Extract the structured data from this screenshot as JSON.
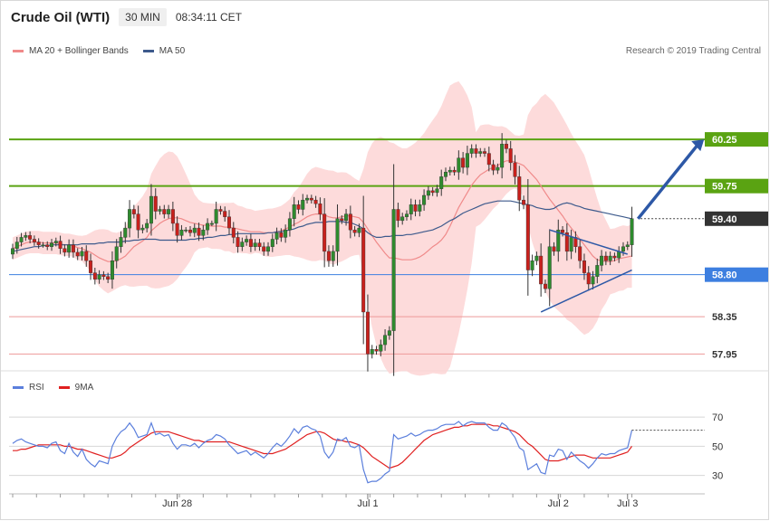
{
  "header": {
    "title": "Crude Oil (WTI)",
    "timeframe": "30 MIN",
    "time": "08:34:11 CET"
  },
  "legend": {
    "ma20": "MA 20 + Bollinger Bands",
    "ma50": "MA 50",
    "rsi": "RSI",
    "rsi_ma": "9MA"
  },
  "copyright": "Research © 2019 Trading Central",
  "colors": {
    "ma20": "#f08a8a",
    "ma50": "#3d5a8c",
    "band_fill": "#fdd5d5",
    "bull": "#2e8b2e",
    "bear": "#c8201c",
    "resistance": "#5aa312",
    "pivot": "#3d7fe0",
    "support": "#ee9a9a",
    "arrow": "#2d58a6",
    "rsi": "#5b7fdc",
    "rsi_ma": "#e02020"
  },
  "chart_data": [
    {
      "type": "candlestick",
      "title": "Crude Oil (WTI)",
      "ylim": [
        57.75,
        60.6
      ],
      "x_ticks": [
        {
          "label": "Jun 28",
          "index": 38
        },
        {
          "label": "Jul 1",
          "index": 82
        },
        {
          "label": "Jul 2",
          "index": 126
        },
        {
          "label": "Jul 3",
          "index": 142
        }
      ],
      "levels": [
        {
          "label": "60.25",
          "value": 60.25,
          "kind": "resistance"
        },
        {
          "label": "59.75",
          "value": 59.75,
          "kind": "resistance"
        },
        {
          "label": "58.80",
          "value": 58.8,
          "kind": "pivot"
        },
        {
          "label": "58.35",
          "value": 58.35,
          "kind": "support"
        },
        {
          "label": "57.95",
          "value": 57.95,
          "kind": "support"
        }
      ],
      "last_price": {
        "label": "59.40",
        "value": 59.4
      },
      "close": [
        59.08,
        59.15,
        59.2,
        59.22,
        59.18,
        59.15,
        59.12,
        59.12,
        59.1,
        59.14,
        59.16,
        59.08,
        59.04,
        59.12,
        59.04,
        59.0,
        59.05,
        58.95,
        58.82,
        58.75,
        58.8,
        58.78,
        58.75,
        58.95,
        59.1,
        59.2,
        59.3,
        59.5,
        59.45,
        59.28,
        59.3,
        59.35,
        59.64,
        59.48,
        59.5,
        59.45,
        59.5,
        59.35,
        59.22,
        59.28,
        59.28,
        59.25,
        59.3,
        59.22,
        59.28,
        59.35,
        59.35,
        59.5,
        59.48,
        59.42,
        59.3,
        59.2,
        59.1,
        59.15,
        59.18,
        59.1,
        59.14,
        59.1,
        59.05,
        59.1,
        59.18,
        59.25,
        59.2,
        59.28,
        59.4,
        59.55,
        59.5,
        59.6,
        59.62,
        59.6,
        59.56,
        59.45,
        59.05,
        58.95,
        59.05,
        59.4,
        59.38,
        59.45,
        59.28,
        59.25,
        59.3,
        58.4,
        57.95,
        58.0,
        57.98,
        58.05,
        58.15,
        58.2,
        59.5,
        59.38,
        59.42,
        59.45,
        59.55,
        59.48,
        59.55,
        59.65,
        59.7,
        59.68,
        59.72,
        59.85,
        59.9,
        59.92,
        59.9,
        60.05,
        59.95,
        60.1,
        60.15,
        60.1,
        60.12,
        60.1,
        59.98,
        59.92,
        59.95,
        60.2,
        60.15,
        60.0,
        59.85,
        59.6,
        59.55,
        58.85,
        58.95,
        59.0,
        58.7,
        58.65,
        59.1,
        59.05,
        59.28,
        59.25,
        59.05,
        59.2,
        59.1,
        58.95,
        58.82,
        58.7,
        58.78,
        58.9,
        59.0,
        58.95,
        59.0,
        58.98,
        59.05,
        59.1,
        59.12,
        59.4
      ],
      "series": [
        {
          "name": "MA 20 + Bollinger Bands",
          "values": [
            59.08,
            59.1,
            59.12,
            59.14,
            59.15,
            59.15,
            59.15,
            59.14,
            59.14,
            59.14,
            59.14,
            59.13,
            59.12,
            59.12,
            59.11,
            59.09,
            59.08,
            59.06,
            59.04,
            59.01,
            58.98,
            58.96,
            58.94,
            58.94,
            58.95,
            58.97,
            59.0,
            59.05,
            59.1,
            59.13,
            59.16,
            59.2,
            59.27,
            59.31,
            59.35,
            59.38,
            59.4,
            59.41,
            59.41,
            59.4,
            59.38,
            59.36,
            59.35,
            59.34,
            59.33,
            59.33,
            59.32,
            59.32,
            59.32,
            59.31,
            59.31,
            59.3,
            59.29,
            59.28,
            59.27,
            59.26,
            59.26,
            59.26,
            59.25,
            59.25,
            59.25,
            59.26,
            59.27,
            59.29,
            59.31,
            59.34,
            59.36,
            59.39,
            59.42,
            59.44,
            59.45,
            59.45,
            59.44,
            59.42,
            59.41,
            59.41,
            59.42,
            59.43,
            59.43,
            59.42,
            59.41,
            59.36,
            59.29,
            59.22,
            59.15,
            59.09,
            59.03,
            58.98,
            58.98,
            58.97,
            58.96,
            58.96,
            58.96,
            58.97,
            58.99,
            59.02,
            59.06,
            59.1,
            59.13,
            59.17,
            59.23,
            59.32,
            59.42,
            59.52,
            59.6,
            59.68,
            59.76,
            59.82,
            59.87,
            59.9,
            59.93,
            59.95,
            59.97,
            60.0,
            60.02,
            60.02,
            60.01,
            59.99,
            59.97,
            59.92,
            59.87,
            59.82,
            59.75,
            59.68,
            59.61,
            59.55,
            59.49,
            59.43,
            59.36,
            59.3,
            59.24,
            59.18,
            59.12,
            59.06,
            59.0,
            58.96,
            58.95,
            58.94,
            58.94,
            58.95,
            58.97,
            58.98,
            58.99,
            59.0
          ]
        },
        {
          "name": "MA 50",
          "values": [
            59.05,
            59.06,
            59.07,
            59.08,
            59.09,
            59.1,
            59.1,
            59.11,
            59.11,
            59.12,
            59.12,
            59.12,
            59.12,
            59.12,
            59.12,
            59.12,
            59.13,
            59.13,
            59.13,
            59.13,
            59.14,
            59.14,
            59.15,
            59.15,
            59.15,
            59.15,
            59.16,
            59.16,
            59.17,
            59.17,
            59.18,
            59.18,
            59.18,
            59.18,
            59.17,
            59.17,
            59.17,
            59.17,
            59.17,
            59.17,
            59.17,
            59.18,
            59.18,
            59.19,
            59.19,
            59.2,
            59.2,
            59.21,
            59.22,
            59.22,
            59.23,
            59.23,
            59.24,
            59.24,
            59.24,
            59.24,
            59.24,
            59.24,
            59.24,
            59.25,
            59.25,
            59.26,
            59.26,
            59.27,
            59.28,
            59.29,
            59.31,
            59.32,
            59.34,
            59.35,
            59.36,
            59.36,
            59.36,
            59.37,
            59.37,
            59.37,
            59.37,
            59.36,
            59.36,
            59.34,
            59.32,
            59.29,
            59.25,
            59.22,
            59.2,
            59.2,
            59.21,
            59.21,
            59.22,
            59.22,
            59.22,
            59.23,
            59.23,
            59.24,
            59.25,
            59.26,
            59.27,
            59.28,
            59.3,
            59.32,
            59.35,
            59.38,
            59.4,
            59.43,
            59.46,
            59.48,
            59.5,
            59.52,
            59.54,
            59.56,
            59.57,
            59.58,
            59.59,
            59.59,
            59.59,
            59.59,
            59.58,
            59.57,
            59.56,
            59.55,
            59.54,
            59.52,
            59.51,
            59.5,
            59.5,
            59.51,
            59.54,
            59.56,
            59.57,
            59.56,
            59.54,
            59.53,
            59.51,
            59.5,
            59.49,
            59.48,
            59.47,
            59.46,
            59.45,
            59.44,
            59.43,
            59.42,
            59.41,
            59.4
          ]
        }
      ]
    },
    {
      "type": "line",
      "title": "RSI",
      "ylim": [
        18,
        80
      ],
      "y_ticks": [
        30,
        50,
        70
      ],
      "series": [
        {
          "name": "RSI",
          "values": [
            52,
            54,
            55,
            53,
            52,
            51,
            50,
            50,
            49,
            52,
            53,
            47,
            45,
            52,
            46,
            43,
            48,
            41,
            38,
            36,
            40,
            39,
            38,
            50,
            56,
            60,
            62,
            66,
            62,
            56,
            57,
            58,
            66,
            58,
            59,
            57,
            58,
            52,
            48,
            51,
            51,
            50,
            52,
            49,
            52,
            54,
            55,
            58,
            57,
            55,
            51,
            48,
            45,
            46,
            47,
            44,
            46,
            44,
            42,
            45,
            49,
            52,
            50,
            53,
            57,
            62,
            59,
            63,
            64,
            62,
            61,
            57,
            46,
            42,
            46,
            55,
            54,
            56,
            50,
            49,
            51,
            34,
            25,
            26,
            26,
            28,
            31,
            33,
            58,
            55,
            56,
            57,
            59,
            57,
            58,
            60,
            61,
            61,
            62,
            64,
            65,
            65,
            65,
            67,
            64,
            66,
            67,
            66,
            66,
            66,
            63,
            61,
            61,
            66,
            64,
            60,
            56,
            49,
            47,
            34,
            36,
            38,
            32,
            31,
            44,
            43,
            48,
            47,
            41,
            46,
            43,
            40,
            38,
            35,
            38,
            42,
            45,
            44,
            45,
            45,
            47,
            48,
            49,
            61
          ]
        },
        {
          "name": "9MA",
          "values": [
            47,
            47,
            48,
            48,
            49,
            50,
            51,
            51,
            51,
            51,
            51,
            51,
            50,
            50,
            49,
            48,
            48,
            47,
            46,
            45,
            44,
            43,
            42,
            42,
            43,
            44,
            46,
            49,
            51,
            53,
            55,
            57,
            59,
            60,
            60,
            60,
            60,
            59,
            58,
            57,
            56,
            55,
            54,
            54,
            53,
            53,
            53,
            53,
            53,
            53,
            53,
            52,
            51,
            50,
            49,
            48,
            47,
            46,
            45,
            45,
            45,
            46,
            47,
            48,
            50,
            52,
            54,
            56,
            58,
            59,
            60,
            60,
            59,
            57,
            55,
            54,
            54,
            53,
            53,
            52,
            51,
            49,
            46,
            43,
            41,
            39,
            37,
            35,
            36,
            37,
            39,
            42,
            45,
            48,
            51,
            54,
            56,
            58,
            59,
            60,
            61,
            62,
            63,
            63,
            64,
            64,
            65,
            65,
            65,
            65,
            65,
            64,
            64,
            63,
            62,
            61,
            60,
            58,
            55,
            52,
            50,
            47,
            44,
            41,
            40,
            40,
            40,
            41,
            42,
            43,
            44,
            44,
            44,
            43,
            42,
            42,
            42,
            42,
            42,
            43,
            44,
            45,
            46,
            50
          ]
        }
      ]
    }
  ]
}
